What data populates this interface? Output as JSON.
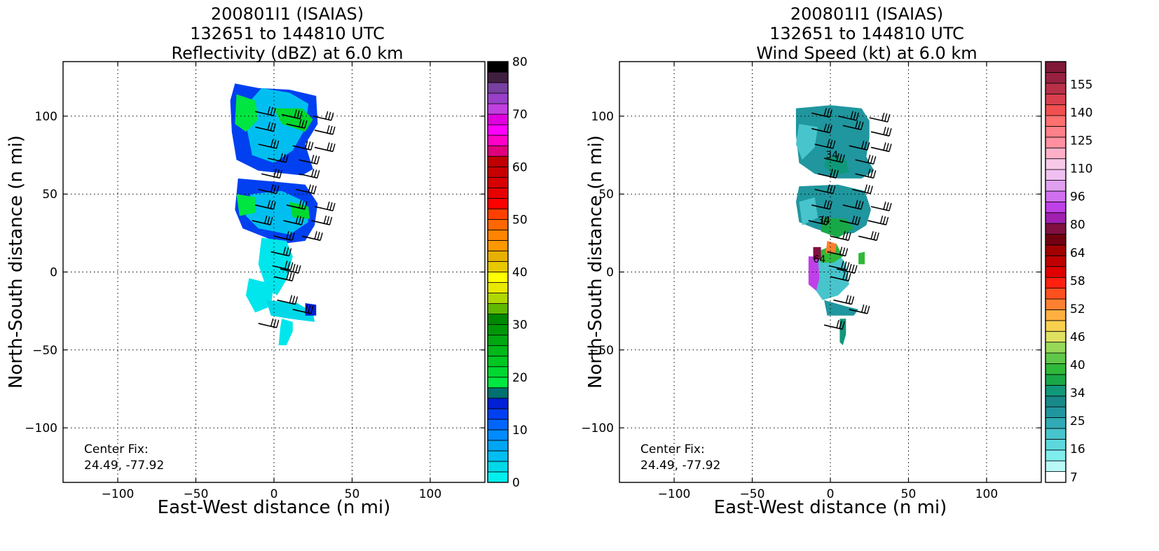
{
  "chart_data": [
    {
      "type": "heatmap",
      "title_lines": [
        "200801I1 (ISAIAS)",
        "132651 to 144810 UTC",
        "Reflectivity (dBZ) at 6.0 km"
      ],
      "xlabel": "East-West distance (n mi)",
      "ylabel": "North-South distance (n mi)",
      "xlim": [
        -135,
        135
      ],
      "ylim": [
        -135,
        135
      ],
      "x_ticks": [
        -100,
        -50,
        0,
        50,
        100
      ],
      "y_ticks": [
        -100,
        -50,
        0,
        50,
        100
      ],
      "x_tick_labels": [
        "−100",
        "−50",
        "0",
        "50",
        "100"
      ],
      "y_tick_labels": [
        "−100",
        "−50",
        "0",
        "50",
        "100"
      ],
      "grid": true,
      "annotation": {
        "line1": "Center Fix:",
        "line2": "24.49, -77.92"
      },
      "colorbar": {
        "tick_labels": [
          "0",
          "10",
          "20",
          "30",
          "40",
          "50",
          "60",
          "70",
          "80"
        ],
        "colors": [
          "#00f0f0",
          "#00d8e8",
          "#00bff0",
          "#00a6f4",
          "#008cff",
          "#0066ff",
          "#0040f0",
          "#0020d8",
          "#007070",
          "#00e640",
          "#00d830",
          "#00c820",
          "#00b818",
          "#00a810",
          "#009808",
          "#008800",
          "#60b800",
          "#b0d800",
          "#e8e800",
          "#ffff00",
          "#e8c800",
          "#e8b000",
          "#ff9800",
          "#ff8400",
          "#ff6800",
          "#ff4000",
          "#ff0000",
          "#e80000",
          "#d80000",
          "#c80000",
          "#c00000",
          "#e0007c",
          "#ff00c8",
          "#ff00ff",
          "#e000e0",
          "#c040e0",
          "#9840c8",
          "#7840a0",
          "#402040",
          "#000000"
        ]
      },
      "echo_regions": [
        {
          "color": "#0040f0",
          "points": [
            [
              -25,
              121
            ],
            [
              -10,
              118
            ],
            [
              10,
              117
            ],
            [
              27,
              113
            ],
            [
              28,
              95
            ],
            [
              20,
              82
            ],
            [
              25,
              66
            ],
            [
              18,
              62
            ],
            [
              -10,
              65
            ],
            [
              -24,
              72
            ],
            [
              -27,
              90
            ],
            [
              -28,
              110
            ]
          ]
        },
        {
          "color": "#00bff0",
          "points": [
            [
              -8,
              118
            ],
            [
              10,
              115
            ],
            [
              22,
              108
            ],
            [
              20,
              92
            ],
            [
              12,
              78
            ],
            [
              0,
              70
            ],
            [
              -14,
              75
            ],
            [
              -18,
              95
            ],
            [
              -15,
              110
            ]
          ]
        },
        {
          "color": "#00e640",
          "points": [
            [
              -24,
              114
            ],
            [
              -12,
              110
            ],
            [
              -10,
              98
            ],
            [
              -18,
              90
            ],
            [
              -25,
              95
            ]
          ]
        },
        {
          "color": "#00d830",
          "points": [
            [
              0,
              105
            ],
            [
              18,
              105
            ],
            [
              25,
              98
            ],
            [
              20,
              90
            ],
            [
              5,
              95
            ]
          ]
        },
        {
          "color": "#0040f0",
          "points": [
            [
              -23,
              60
            ],
            [
              0,
              58
            ],
            [
              20,
              56
            ],
            [
              28,
              44
            ],
            [
              26,
              30
            ],
            [
              20,
              20
            ],
            [
              5,
              18
            ],
            [
              -5,
              22
            ],
            [
              -20,
              28
            ],
            [
              -25,
              40
            ]
          ]
        },
        {
          "color": "#00bff0",
          "points": [
            [
              -15,
              50
            ],
            [
              5,
              52
            ],
            [
              20,
              45
            ],
            [
              22,
              32
            ],
            [
              10,
              24
            ],
            [
              -10,
              28
            ],
            [
              -18,
              36
            ]
          ]
        },
        {
          "color": "#00e640",
          "points": [
            [
              -24,
              50
            ],
            [
              -12,
              48
            ],
            [
              -12,
              38
            ],
            [
              -22,
              36
            ]
          ]
        },
        {
          "color": "#00d830",
          "points": [
            [
              10,
              45
            ],
            [
              22,
              42
            ],
            [
              23,
              34
            ],
            [
              12,
              35
            ]
          ]
        },
        {
          "color": "#00e6ec",
          "points": [
            [
              -8,
              22
            ],
            [
              8,
              20
            ],
            [
              12,
              10
            ],
            [
              8,
              -5
            ],
            [
              2,
              -15
            ],
            [
              -5,
              -10
            ],
            [
              -10,
              5
            ]
          ]
        },
        {
          "color": "#00e6ec",
          "points": [
            [
              -16,
              -4
            ],
            [
              0,
              -8
            ],
            [
              -2,
              -22
            ],
            [
              -12,
              -26
            ],
            [
              -18,
              -15
            ]
          ]
        },
        {
          "color": "#00d8e8",
          "points": [
            [
              -5,
              -18
            ],
            [
              15,
              -20
            ],
            [
              25,
              -26
            ],
            [
              26,
              -32
            ],
            [
              10,
              -30
            ],
            [
              -2,
              -28
            ]
          ]
        },
        {
          "color": "#0020d8",
          "points": [
            [
              20,
              -20
            ],
            [
              27,
              -21
            ],
            [
              27,
              -28
            ],
            [
              20,
              -28
            ]
          ]
        },
        {
          "color": "#00e6ec",
          "points": [
            [
              5,
              -30
            ],
            [
              12,
              -32
            ],
            [
              12,
              -38
            ],
            [
              8,
              -47
            ],
            [
              3,
              -47
            ],
            [
              4,
              -36
            ]
          ]
        }
      ],
      "wind_barbs": [
        [
          -12,
          103
        ],
        [
          5,
          101
        ],
        [
          25,
          100
        ],
        [
          -12,
          93
        ],
        [
          8,
          95
        ],
        [
          26,
          91
        ],
        [
          -10,
          82
        ],
        [
          12,
          81
        ],
        [
          26,
          80
        ],
        [
          -4,
          73
        ],
        [
          16,
          72
        ],
        [
          -8,
          63
        ],
        [
          16,
          63
        ],
        [
          -10,
          53
        ],
        [
          14,
          53
        ],
        [
          -12,
          43
        ],
        [
          8,
          43
        ],
        [
          26,
          42
        ],
        [
          -14,
          33
        ],
        [
          6,
          33
        ],
        [
          24,
          33
        ],
        [
          0,
          23
        ],
        [
          18,
          23
        ],
        [
          -2,
          13
        ],
        [
          -1,
          4
        ],
        [
          4,
          2
        ],
        [
          0,
          -3
        ],
        [
          2,
          -18
        ],
        [
          12,
          -24
        ],
        [
          -10,
          -33
        ]
      ]
    },
    {
      "type": "heatmap",
      "title_lines": [
        "200801I1 (ISAIAS)",
        "132651 to 144810 UTC",
        "Wind Speed (kt) at 6.0 km"
      ],
      "xlabel": "East-West distance (n mi)",
      "ylabel": "North-South distance (n mi)",
      "xlim": [
        -135,
        135
      ],
      "ylim": [
        -135,
        135
      ],
      "x_ticks": [
        -100,
        -50,
        0,
        50,
        100
      ],
      "y_ticks": [
        -100,
        -50,
        0,
        50,
        100
      ],
      "x_tick_labels": [
        "−100",
        "−50",
        "0",
        "50",
        "100"
      ],
      "y_tick_labels": [
        "−100",
        "−50",
        "0",
        "50",
        "100"
      ],
      "grid": true,
      "annotation": {
        "line1": "Center Fix:",
        "line2": "24.49, -77.92"
      },
      "contour_labels": [
        "34",
        "34",
        "64"
      ],
      "colorbar": {
        "tick_labels": [
          "7",
          "16",
          "25",
          "34",
          "40",
          "46",
          "52",
          "58",
          "64",
          "80",
          "96",
          "110",
          "125",
          "140",
          "155"
        ],
        "colors": [
          "#ffffff",
          "#b8f8f8",
          "#80ecec",
          "#5cd8dc",
          "#48c4cc",
          "#30aab4",
          "#20969e",
          "#188888",
          "#10987a",
          "#18a848",
          "#30b838",
          "#60c848",
          "#98d858",
          "#e0e060",
          "#f8d050",
          "#ffb040",
          "#ff8030",
          "#ff5020",
          "#ff2010",
          "#e00000",
          "#c00000",
          "#a00000",
          "#700010",
          "#801040",
          "#a020b0",
          "#c040e8",
          "#d070f0",
          "#e0a0f0",
          "#f0c0f0",
          "#f8c8e8",
          "#ffb0c8",
          "#ff90a0",
          "#ff8088",
          "#ff7070",
          "#f05050",
          "#d84050",
          "#b83048",
          "#982040",
          "#801838"
        ]
      },
      "echo_regions": [
        {
          "color": "#20969e",
          "points": [
            [
              -22,
              105
            ],
            [
              0,
              107
            ],
            [
              20,
              105
            ],
            [
              25,
              97
            ],
            [
              25,
              86
            ],
            [
              23,
              74
            ],
            [
              28,
              65
            ],
            [
              20,
              60
            ],
            [
              5,
              60
            ],
            [
              -10,
              63
            ],
            [
              -20,
              70
            ],
            [
              -22,
              88
            ]
          ]
        },
        {
          "color": "#48c4cc",
          "points": [
            [
              -20,
              95
            ],
            [
              -8,
              93
            ],
            [
              -10,
              80
            ],
            [
              -18,
              72
            ],
            [
              -22,
              82
            ]
          ]
        },
        {
          "color": "#10987a",
          "points": [
            [
              -2,
              75
            ],
            [
              10,
              72
            ],
            [
              12,
              64
            ],
            [
              2,
              62
            ],
            [
              -4,
              68
            ]
          ]
        },
        {
          "color": "#20969e",
          "points": [
            [
              -20,
              55
            ],
            [
              5,
              56
            ],
            [
              22,
              52
            ],
            [
              26,
              40
            ],
            [
              23,
              30
            ],
            [
              15,
              25
            ],
            [
              2,
              24
            ],
            [
              -10,
              28
            ],
            [
              -20,
              32
            ],
            [
              -22,
              45
            ]
          ]
        },
        {
          "color": "#48c4cc",
          "points": [
            [
              -20,
              45
            ],
            [
              -10,
              48
            ],
            [
              -8,
              35
            ],
            [
              -18,
              30
            ]
          ]
        },
        {
          "color": "#18a848",
          "points": [
            [
              -5,
              35
            ],
            [
              10,
              34
            ],
            [
              15,
              28
            ],
            [
              5,
              22
            ],
            [
              -6,
              26
            ]
          ]
        },
        {
          "color": "#48c4cc",
          "points": [
            [
              -8,
              12
            ],
            [
              5,
              12
            ],
            [
              10,
              5
            ],
            [
              12,
              -8
            ],
            [
              5,
              -15
            ],
            [
              -5,
              -18
            ],
            [
              -12,
              -8
            ],
            [
              -12,
              4
            ]
          ]
        },
        {
          "color": "#30b838",
          "points": [
            [
              -6,
              14
            ],
            [
              4,
              18
            ],
            [
              8,
              10
            ],
            [
              2,
              6
            ],
            [
              -6,
              6
            ]
          ]
        },
        {
          "color": "#ff8030",
          "points": [
            [
              -2,
              20
            ],
            [
              4,
              18
            ],
            [
              3,
              12
            ],
            [
              -3,
              12
            ]
          ]
        },
        {
          "color": "#c040e8",
          "points": [
            [
              -14,
              10
            ],
            [
              -8,
              10
            ],
            [
              -7,
              -4
            ],
            [
              -9,
              -12
            ],
            [
              -14,
              -8
            ]
          ]
        },
        {
          "color": "#801040",
          "points": [
            [
              -11,
              16
            ],
            [
              -6,
              16
            ],
            [
              -6,
              8
            ],
            [
              -11,
              8
            ]
          ]
        },
        {
          "color": "#30b838",
          "points": [
            [
              18,
              12
            ],
            [
              22,
              13
            ],
            [
              22,
              5
            ],
            [
              18,
              5
            ]
          ]
        },
        {
          "color": "#20969e",
          "points": [
            [
              -4,
              -18
            ],
            [
              10,
              -22
            ],
            [
              18,
              -24
            ],
            [
              15,
              -28
            ],
            [
              -2,
              -28
            ]
          ]
        },
        {
          "color": "#10987a",
          "points": [
            [
              6,
              -30
            ],
            [
              10,
              -30
            ],
            [
              10,
              -40
            ],
            [
              8,
              -47
            ],
            [
              6,
              -45
            ]
          ]
        }
      ],
      "wind_barbs": [
        [
          -12,
          102
        ],
        [
          5,
          100
        ],
        [
          25,
          99
        ],
        [
          -12,
          92
        ],
        [
          8,
          94
        ],
        [
          26,
          90
        ],
        [
          -10,
          82
        ],
        [
          12,
          81
        ],
        [
          26,
          80
        ],
        [
          -4,
          73
        ],
        [
          16,
          72
        ],
        [
          -8,
          63
        ],
        [
          16,
          63
        ],
        [
          -10,
          53
        ],
        [
          14,
          53
        ],
        [
          -12,
          43
        ],
        [
          8,
          43
        ],
        [
          26,
          42
        ],
        [
          -14,
          33
        ],
        [
          6,
          33
        ],
        [
          24,
          33
        ],
        [
          0,
          23
        ],
        [
          18,
          23
        ],
        [
          -2,
          13
        ],
        [
          -1,
          4
        ],
        [
          4,
          2
        ],
        [
          0,
          -3
        ],
        [
          2,
          -18
        ],
        [
          12,
          -24
        ],
        [
          -4,
          -34
        ]
      ]
    }
  ]
}
